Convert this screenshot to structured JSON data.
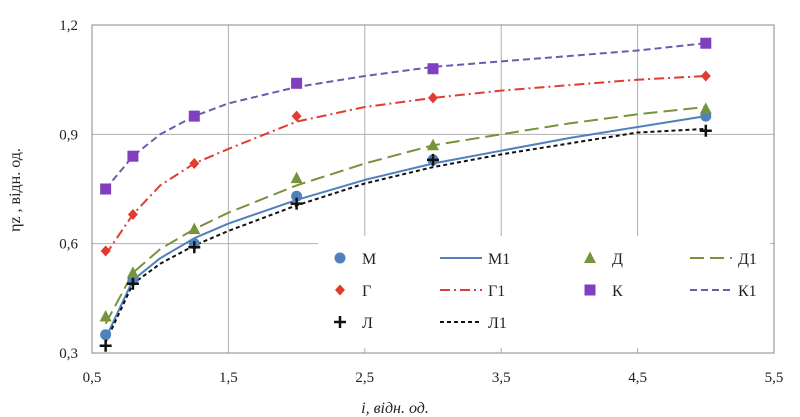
{
  "chart_data": {
    "type": "line",
    "xlabel": "i, відн. од.",
    "ylabel": "ηz , відн. од.",
    "xlim": [
      0.5,
      5.5
    ],
    "ylim": [
      0.3,
      1.2
    ],
    "xticks": [
      0.5,
      1.5,
      2.5,
      3.5,
      4.5,
      5.5
    ],
    "xtick_labels": [
      "0,5",
      "1,5",
      "2,5",
      "3,5",
      "4,5",
      "5,5"
    ],
    "yticks": [
      0.3,
      0.6,
      0.9,
      1.2
    ],
    "ytick_labels": [
      "0,3",
      "0,6",
      "0,9",
      "1,2"
    ],
    "grid": true,
    "legend_position": "lower-right",
    "series": [
      {
        "name": "М",
        "kind": "markers",
        "marker": "circle",
        "color": "#4f81bd",
        "x": [
          0.6,
          0.8,
          1.25,
          2.0,
          3.0,
          5.0
        ],
        "y": [
          0.35,
          0.5,
          0.6,
          0.73,
          0.83,
          0.95
        ]
      },
      {
        "name": "М1",
        "kind": "line",
        "dash": "solid",
        "color": "#4f81bd",
        "x": [
          0.6,
          0.8,
          1.0,
          1.25,
          1.5,
          2.0,
          2.5,
          3.0,
          3.5,
          4.0,
          4.5,
          5.0
        ],
        "y": [
          0.34,
          0.5,
          0.56,
          0.615,
          0.655,
          0.72,
          0.775,
          0.82,
          0.855,
          0.89,
          0.92,
          0.95
        ]
      },
      {
        "name": "Д",
        "kind": "markers",
        "marker": "triangle",
        "color": "#77933c",
        "x": [
          0.6,
          0.8,
          1.25,
          2.0,
          3.0,
          5.0
        ],
        "y": [
          0.4,
          0.52,
          0.64,
          0.78,
          0.87,
          0.97
        ]
      },
      {
        "name": "Д1",
        "kind": "line",
        "dash": "long-dash",
        "color": "#77933c",
        "x": [
          0.6,
          0.8,
          1.0,
          1.25,
          1.5,
          2.0,
          2.5,
          3.0,
          3.5,
          4.0,
          4.5,
          5.0
        ],
        "y": [
          0.38,
          0.52,
          0.585,
          0.64,
          0.685,
          0.76,
          0.82,
          0.87,
          0.9,
          0.93,
          0.955,
          0.975
        ]
      },
      {
        "name": "Г",
        "kind": "markers",
        "marker": "diamond",
        "color": "#e03c31",
        "x": [
          0.6,
          0.8,
          1.25,
          2.0,
          3.0,
          5.0
        ],
        "y": [
          0.58,
          0.68,
          0.82,
          0.95,
          1.0,
          1.06
        ]
      },
      {
        "name": "Г1",
        "kind": "line",
        "dash": "dash-dot",
        "color": "#e03c31",
        "x": [
          0.6,
          0.8,
          1.0,
          1.25,
          1.5,
          2.0,
          2.5,
          3.0,
          3.5,
          4.0,
          4.5,
          5.0
        ],
        "y": [
          0.57,
          0.68,
          0.76,
          0.82,
          0.86,
          0.935,
          0.975,
          1.0,
          1.02,
          1.035,
          1.05,
          1.06
        ]
      },
      {
        "name": "К",
        "kind": "markers",
        "marker": "square",
        "color": "#7f3fbf",
        "x": [
          0.6,
          0.8,
          1.25,
          2.0,
          3.0,
          5.0
        ],
        "y": [
          0.75,
          0.84,
          0.95,
          1.04,
          1.08,
          1.15
        ]
      },
      {
        "name": "К1",
        "kind": "line",
        "dash": "dash",
        "color": "#6b5bb0",
        "x": [
          0.6,
          0.8,
          1.0,
          1.25,
          1.5,
          2.0,
          2.5,
          3.0,
          3.5,
          4.0,
          4.5,
          5.0
        ],
        "y": [
          0.75,
          0.84,
          0.9,
          0.95,
          0.985,
          1.03,
          1.06,
          1.085,
          1.1,
          1.115,
          1.13,
          1.15
        ]
      },
      {
        "name": "Л",
        "kind": "markers",
        "marker": "plus",
        "color": "#111111",
        "x": [
          0.6,
          0.8,
          1.25,
          2.0,
          3.0,
          5.0
        ],
        "y": [
          0.32,
          0.49,
          0.59,
          0.71,
          0.83,
          0.91
        ]
      },
      {
        "name": "Л1",
        "kind": "line",
        "dash": "short-dash",
        "color": "#111111",
        "x": [
          0.6,
          0.8,
          1.0,
          1.25,
          1.5,
          2.0,
          2.5,
          3.0,
          3.5,
          4.0,
          4.5,
          5.0
        ],
        "y": [
          0.33,
          0.49,
          0.545,
          0.595,
          0.635,
          0.705,
          0.765,
          0.81,
          0.845,
          0.875,
          0.905,
          0.915
        ]
      }
    ],
    "legend_order": [
      "М",
      "М1",
      "Д",
      "Д1",
      "Г",
      "Г1",
      "К",
      "К1",
      "Л",
      "Л1"
    ]
  }
}
